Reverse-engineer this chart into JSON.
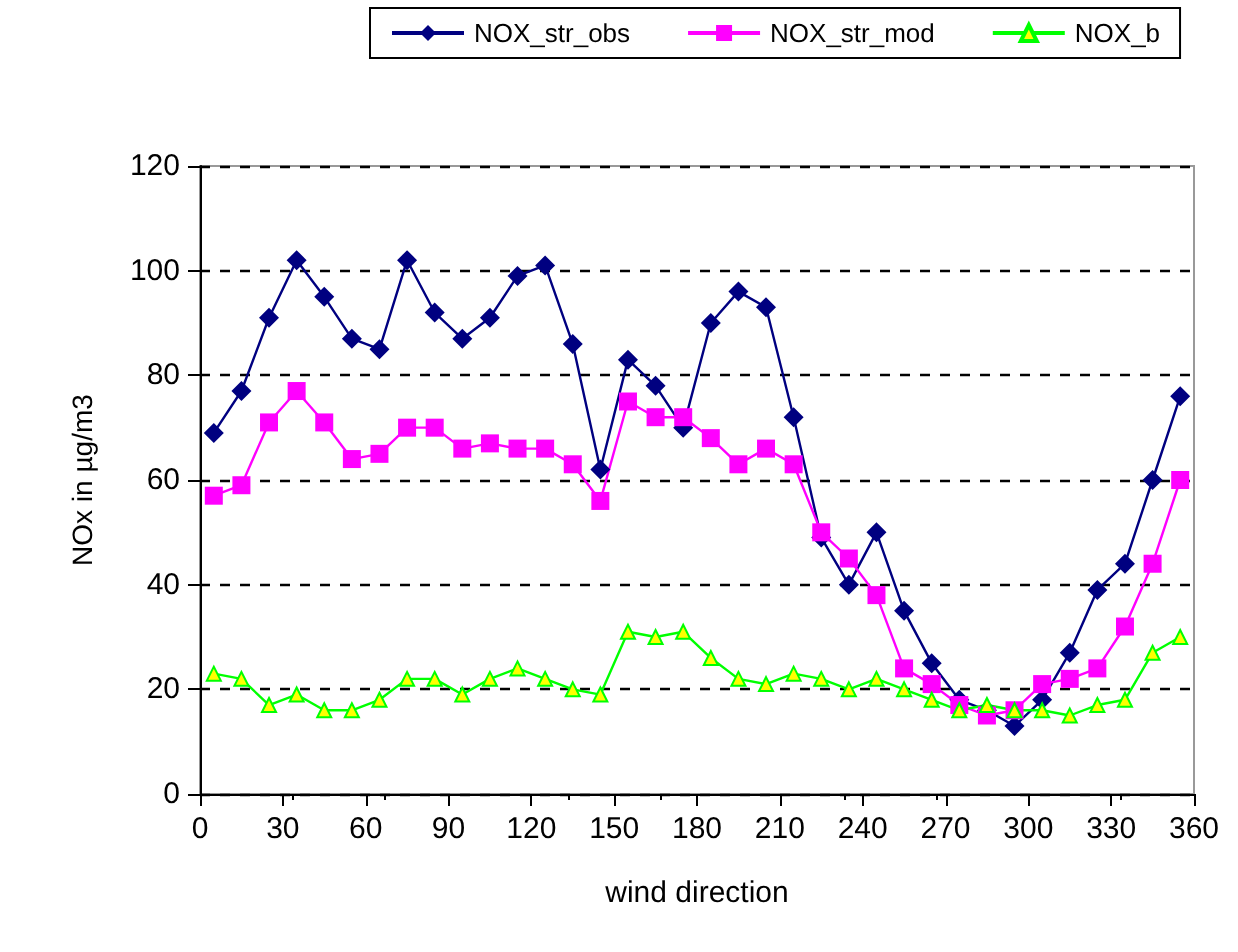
{
  "chart_data": {
    "type": "line",
    "xlabel": "wind direction",
    "ylabel": "NOx in µg/m3",
    "x": [
      5,
      15,
      25,
      35,
      45,
      55,
      65,
      75,
      85,
      95,
      105,
      115,
      125,
      135,
      145,
      155,
      165,
      175,
      185,
      195,
      205,
      215,
      225,
      235,
      245,
      255,
      265,
      275,
      285,
      295,
      305,
      315,
      325,
      335,
      345,
      355
    ],
    "series": [
      {
        "name": "NOX_str_obs",
        "color": "#000080",
        "marker": "diamond",
        "values": [
          69,
          77,
          91,
          102,
          95,
          87,
          85,
          102,
          92,
          87,
          91,
          99,
          101,
          86,
          62,
          83,
          78,
          70,
          90,
          96,
          93,
          72,
          49,
          40,
          50,
          35,
          25,
          18,
          16,
          13,
          18,
          27,
          39,
          44,
          60,
          76
        ]
      },
      {
        "name": "NOX_str_mod",
        "color": "#ff00ff",
        "marker": "square",
        "values": [
          57,
          59,
          71,
          77,
          71,
          64,
          65,
          70,
          70,
          66,
          67,
          66,
          66,
          63,
          56,
          75,
          72,
          72,
          68,
          63,
          66,
          63,
          50,
          45,
          38,
          24,
          21,
          17,
          15,
          16,
          21,
          22,
          24,
          32,
          44,
          60
        ]
      },
      {
        "name": "NOX_b",
        "color": "#00ff00",
        "marker": "triangle",
        "values": [
          23,
          22,
          17,
          19,
          16,
          16,
          18,
          22,
          22,
          19,
          22,
          24,
          22,
          20,
          19,
          31,
          30,
          31,
          26,
          22,
          21,
          23,
          22,
          20,
          22,
          20,
          18,
          16,
          17,
          16,
          16,
          15,
          17,
          18,
          27,
          30
        ]
      }
    ],
    "xlim": [
      0,
      360
    ],
    "xticks": [
      0,
      30,
      60,
      90,
      120,
      150,
      180,
      210,
      240,
      270,
      300,
      330,
      360
    ],
    "ylim": [
      0,
      120
    ],
    "yticks": [
      0,
      20,
      40,
      60,
      80,
      100,
      120
    ],
    "grid": "y",
    "legend": "top",
    "line_style": "solid"
  }
}
